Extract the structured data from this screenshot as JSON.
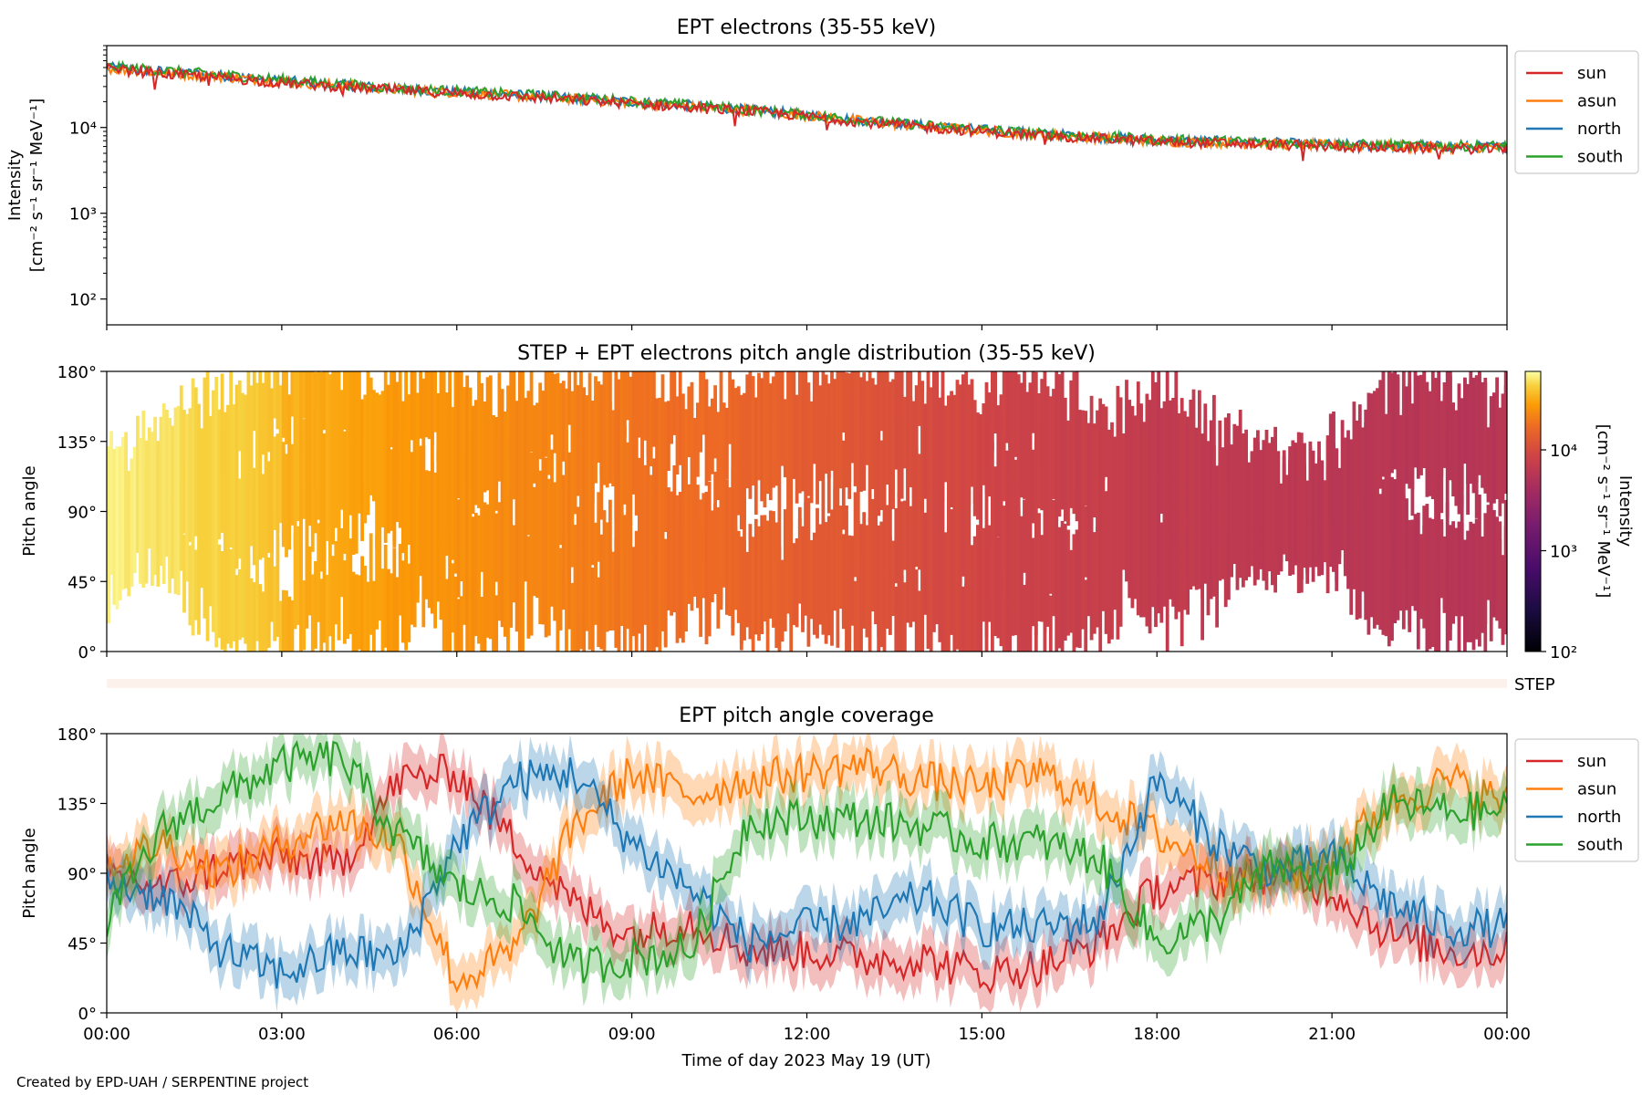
{
  "footer": {
    "credit": "Created by EPD-UAH / SERPENTINE project"
  },
  "xaxis": {
    "label": "Time of day 2023 May 19 (UT)",
    "ticks": [
      "00:00",
      "03:00",
      "06:00",
      "09:00",
      "12:00",
      "15:00",
      "18:00",
      "21:00",
      "00:00"
    ]
  },
  "colors": {
    "sun": "#d62728",
    "asun": "#ff7f0e",
    "north": "#1f77b4",
    "south": "#2ca02c"
  },
  "chart_data": [
    {
      "type": "line",
      "title": "EPT electrons (35-55 keV)",
      "ylabel_main": "Intensity",
      "ylabel_units": "[cm⁻² s⁻¹ sr⁻¹ MeV⁻¹]",
      "yscale": "log",
      "ylim": [
        50,
        90000
      ],
      "yticks": [
        "10²",
        "10³",
        "10⁴"
      ],
      "xlim_hours": [
        0,
        24
      ],
      "legend": [
        "sun",
        "asun",
        "north",
        "south"
      ],
      "legend_position": "outside-right-top",
      "x_hours": [
        0,
        1,
        2,
        3,
        4,
        5,
        6,
        7,
        8,
        9,
        10,
        11,
        12,
        13,
        14,
        15,
        16,
        17,
        18,
        19,
        20,
        21,
        22,
        23,
        24
      ],
      "series": [
        {
          "name": "sun",
          "values": [
            48000,
            42000,
            38000,
            33000,
            30000,
            27000,
            25000,
            23000,
            21000,
            19000,
            17000,
            15500,
            13500,
            11500,
            10000,
            9000,
            8000,
            7500,
            6800,
            6600,
            6300,
            6000,
            5800,
            5700,
            5600
          ]
        },
        {
          "name": "asun",
          "values": [
            49000,
            43000,
            39000,
            34000,
            31000,
            27500,
            25500,
            23500,
            21500,
            19500,
            17500,
            15800,
            13800,
            11800,
            10200,
            9200,
            8200,
            7600,
            6900,
            6700,
            6400,
            6200,
            6000,
            5900,
            5800
          ]
        },
        {
          "name": "north",
          "values": [
            50000,
            45000,
            40000,
            35000,
            31500,
            28000,
            26000,
            24000,
            22000,
            20000,
            18000,
            16000,
            14000,
            12000,
            10500,
            9400,
            8400,
            7800,
            7100,
            6900,
            6600,
            6300,
            6100,
            6000,
            5900
          ]
        },
        {
          "name": "south",
          "values": [
            51000,
            46000,
            41000,
            36000,
            32000,
            28500,
            26500,
            24500,
            22500,
            20300,
            18200,
            16200,
            14100,
            12100,
            10600,
            9500,
            8500,
            7900,
            7200,
            7000,
            6700,
            6400,
            6200,
            6100,
            6100
          ]
        }
      ]
    },
    {
      "type": "heatmap",
      "title": "STEP + EPT electrons pitch angle distribution (35-55 keV)",
      "ylabel": "Pitch angle",
      "ylim": [
        0,
        180
      ],
      "yticks": [
        "0°",
        "45°",
        "90°",
        "135°",
        "180°"
      ],
      "colorbar": {
        "label": "Intensity",
        "units": "[cm⁻² s⁻¹ sr⁻¹ MeV⁻¹]",
        "scale": "log",
        "range": [
          100,
          60000
        ],
        "ticks": [
          "10²",
          "10³",
          "10⁴"
        ],
        "colormap": "inferno"
      },
      "xlim_hours": [
        0,
        24
      ],
      "x_hours": [
        0,
        2,
        4,
        6,
        8,
        10,
        12,
        14,
        16,
        18,
        20,
        22,
        24
      ],
      "intensity": [
        48000,
        38000,
        30000,
        25000,
        21000,
        17000,
        13500,
        10000,
        8000,
        6800,
        6300,
        5800,
        5600
      ],
      "step_strip_label": "STEP"
    },
    {
      "type": "line",
      "title": "EPT pitch angle coverage",
      "ylabel": "Pitch angle",
      "ylim": [
        0,
        180
      ],
      "yticks": [
        "0°",
        "45°",
        "90°",
        "135°",
        "180°"
      ],
      "xlim_hours": [
        0,
        24
      ],
      "legend": [
        "sun",
        "asun",
        "north",
        "south"
      ],
      "legend_position": "outside-right-top",
      "x_hours": [
        0,
        1,
        2,
        3,
        4,
        5,
        6,
        7,
        8,
        9,
        10,
        11,
        12,
        13,
        14,
        15,
        16,
        17,
        18,
        19,
        20,
        21,
        22,
        23,
        24
      ],
      "series": [
        {
          "name": "sun",
          "values": [
            90,
            80,
            95,
            100,
            95,
            150,
            155,
            110,
            70,
            50,
            60,
            40,
            40,
            35,
            35,
            25,
            30,
            45,
            80,
            85,
            90,
            80,
            50,
            40,
            40
          ]
        },
        {
          "name": "asun",
          "values": [
            95,
            110,
            90,
            110,
            125,
            110,
            20,
            40,
            120,
            155,
            140,
            150,
            155,
            160,
            150,
            145,
            155,
            135,
            115,
            95,
            85,
            100,
            135,
            150,
            135
          ]
        },
        {
          "name": "north",
          "values": [
            85,
            75,
            40,
            25,
            40,
            35,
            110,
            150,
            155,
            110,
            80,
            45,
            55,
            60,
            75,
            55,
            55,
            60,
            150,
            110,
            90,
            100,
            70,
            55,
            55
          ]
        },
        {
          "name": "south",
          "values": [
            60,
            120,
            140,
            160,
            165,
            115,
            80,
            70,
            30,
            35,
            40,
            125,
            125,
            125,
            120,
            110,
            110,
            100,
            45,
            60,
            95,
            85,
            135,
            130,
            130
          ]
        }
      ]
    }
  ]
}
